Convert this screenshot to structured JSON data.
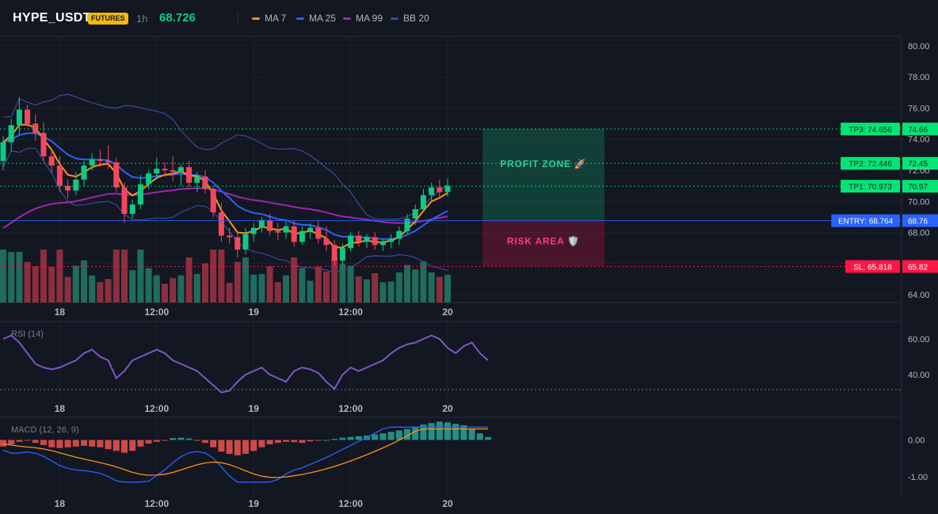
{
  "header": {
    "symbol": "HYPE_USDT",
    "badge": "FUTURES",
    "timeframe": "1h",
    "last_price": "68.726",
    "legend": [
      {
        "name": "MA 7",
        "color": "#f7931a"
      },
      {
        "name": "MA 25",
        "color": "#2962ff"
      },
      {
        "name": "MA 99",
        "color": "#9c27b0"
      },
      {
        "name": "BB 20",
        "color": "#3b4a9e"
      }
    ]
  },
  "colors": {
    "up": "#0ecb81",
    "down": "#f6465d",
    "vol_up": "#1f6b5c",
    "vol_down": "#8a2f3f",
    "entry": "#2962ff",
    "tp": "#00e676",
    "sl": "#ff1744",
    "rsi": "#7e57c2",
    "macd_line": "#2962ff",
    "signal_line": "#f7931a"
  },
  "x_axis": {
    "ticks": [
      {
        "label": "18",
        "index": 7
      },
      {
        "label": "12:00",
        "index": 19
      },
      {
        "label": "19",
        "index": 31
      },
      {
        "label": "12:00",
        "index": 43
      },
      {
        "label": "20",
        "index": 55
      }
    ]
  },
  "price_axis": {
    "ticks": [
      "80.00",
      "78.00",
      "76.00",
      "74.00",
      "72.00",
      "70.00",
      "68.00",
      "64.00"
    ]
  },
  "rsi_axis": {
    "ticks": [
      "60.00",
      "40.00"
    ]
  },
  "macd_axis": {
    "ticks": [
      "0.00",
      "-1.00"
    ]
  },
  "levels": [
    {
      "label": "TP3: 74.656",
      "price": 74.656,
      "axis": "74.66",
      "kind": "tp"
    },
    {
      "label": "TP2: 72.446",
      "price": 72.446,
      "axis": "72.45",
      "kind": "tp"
    },
    {
      "label": "TP1: 70.973",
      "price": 70.973,
      "axis": "70.97",
      "kind": "tp"
    },
    {
      "label": "ENTRY: 68.764",
      "price": 68.764,
      "axis": "68.76",
      "kind": "entry"
    },
    {
      "label": "SL: 65.818",
      "price": 65.818,
      "axis": "65.82",
      "kind": "sl"
    }
  ],
  "zones": {
    "profit_label": "PROFIT ZONE 🚀",
    "risk_label": "RISK AREA 🛡️"
  },
  "chart_data": [
    {
      "type": "candlestick",
      "title": "HYPE_USDT 1h",
      "ylim": [
        63.5,
        80.5
      ],
      "candles": [
        {
          "o": 72.6,
          "h": 74.2,
          "l": 72.0,
          "c": 73.8
        },
        {
          "o": 73.8,
          "h": 75.3,
          "l": 73.2,
          "c": 74.9
        },
        {
          "o": 74.9,
          "h": 76.7,
          "l": 74.3,
          "c": 75.9
        },
        {
          "o": 75.9,
          "h": 76.2,
          "l": 74.8,
          "c": 75.0
        },
        {
          "o": 75.0,
          "h": 75.6,
          "l": 73.9,
          "c": 74.4
        },
        {
          "o": 74.4,
          "h": 75.1,
          "l": 72.6,
          "c": 72.9
        },
        {
          "o": 72.9,
          "h": 73.4,
          "l": 71.8,
          "c": 72.3
        },
        {
          "o": 72.3,
          "h": 72.9,
          "l": 70.6,
          "c": 71.0
        },
        {
          "o": 71.0,
          "h": 71.4,
          "l": 70.2,
          "c": 70.7
        },
        {
          "o": 70.7,
          "h": 71.9,
          "l": 70.4,
          "c": 71.4
        },
        {
          "o": 71.4,
          "h": 72.6,
          "l": 71.0,
          "c": 72.3
        },
        {
          "o": 72.3,
          "h": 73.1,
          "l": 72.0,
          "c": 72.7
        },
        {
          "o": 72.7,
          "h": 73.3,
          "l": 72.2,
          "c": 72.6
        },
        {
          "o": 72.6,
          "h": 73.6,
          "l": 72.1,
          "c": 72.5
        },
        {
          "o": 72.5,
          "h": 72.8,
          "l": 70.6,
          "c": 70.9
        },
        {
          "o": 70.9,
          "h": 71.2,
          "l": 68.6,
          "c": 69.2
        },
        {
          "o": 69.2,
          "h": 70.1,
          "l": 68.9,
          "c": 69.8
        },
        {
          "o": 69.8,
          "h": 71.7,
          "l": 69.5,
          "c": 71.1
        },
        {
          "o": 71.1,
          "h": 72.0,
          "l": 70.8,
          "c": 71.8
        },
        {
          "o": 71.8,
          "h": 72.8,
          "l": 71.4,
          "c": 72.1
        },
        {
          "o": 72.1,
          "h": 72.5,
          "l": 71.6,
          "c": 72.0
        },
        {
          "o": 72.0,
          "h": 72.9,
          "l": 71.3,
          "c": 71.9
        },
        {
          "o": 71.9,
          "h": 72.4,
          "l": 71.0,
          "c": 72.2
        },
        {
          "o": 72.2,
          "h": 72.6,
          "l": 70.9,
          "c": 71.2
        },
        {
          "o": 71.2,
          "h": 71.9,
          "l": 70.6,
          "c": 71.6
        },
        {
          "o": 71.6,
          "h": 72.0,
          "l": 70.5,
          "c": 70.8
        },
        {
          "o": 70.8,
          "h": 71.0,
          "l": 69.0,
          "c": 69.3
        },
        {
          "o": 69.3,
          "h": 69.9,
          "l": 67.4,
          "c": 67.8
        },
        {
          "o": 67.8,
          "h": 68.3,
          "l": 67.3,
          "c": 67.7
        },
        {
          "o": 67.7,
          "h": 68.1,
          "l": 66.4,
          "c": 66.9
        },
        {
          "o": 66.9,
          "h": 68.3,
          "l": 66.6,
          "c": 67.9
        },
        {
          "o": 67.9,
          "h": 68.6,
          "l": 67.4,
          "c": 68.3
        },
        {
          "o": 68.3,
          "h": 69.0,
          "l": 68.0,
          "c": 68.8
        },
        {
          "o": 68.8,
          "h": 69.2,
          "l": 67.8,
          "c": 68.1
        },
        {
          "o": 68.1,
          "h": 68.6,
          "l": 67.5,
          "c": 68.0
        },
        {
          "o": 68.0,
          "h": 68.7,
          "l": 67.6,
          "c": 68.4
        },
        {
          "o": 68.4,
          "h": 68.8,
          "l": 67.1,
          "c": 67.4
        },
        {
          "o": 67.4,
          "h": 68.4,
          "l": 67.2,
          "c": 68.1
        },
        {
          "o": 68.1,
          "h": 68.6,
          "l": 67.6,
          "c": 68.3
        },
        {
          "o": 68.3,
          "h": 68.7,
          "l": 67.3,
          "c": 67.6
        },
        {
          "o": 67.6,
          "h": 68.4,
          "l": 66.8,
          "c": 67.2
        },
        {
          "o": 67.2,
          "h": 67.5,
          "l": 65.9,
          "c": 66.2
        },
        {
          "o": 66.2,
          "h": 67.3,
          "l": 65.9,
          "c": 67.0
        },
        {
          "o": 67.0,
          "h": 68.0,
          "l": 66.8,
          "c": 67.8
        },
        {
          "o": 67.8,
          "h": 68.1,
          "l": 67.1,
          "c": 67.4
        },
        {
          "o": 67.4,
          "h": 67.9,
          "l": 67.0,
          "c": 67.7
        },
        {
          "o": 67.7,
          "h": 68.0,
          "l": 66.9,
          "c": 67.2
        },
        {
          "o": 67.2,
          "h": 67.6,
          "l": 66.8,
          "c": 67.4
        },
        {
          "o": 67.4,
          "h": 67.9,
          "l": 67.0,
          "c": 67.6
        },
        {
          "o": 67.6,
          "h": 68.4,
          "l": 67.2,
          "c": 68.1
        },
        {
          "o": 68.1,
          "h": 69.2,
          "l": 67.9,
          "c": 68.9
        },
        {
          "o": 68.9,
          "h": 69.8,
          "l": 68.5,
          "c": 69.5
        },
        {
          "o": 69.5,
          "h": 70.8,
          "l": 69.3,
          "c": 70.4
        },
        {
          "o": 70.4,
          "h": 71.2,
          "l": 70.0,
          "c": 70.9
        },
        {
          "o": 70.9,
          "h": 71.4,
          "l": 70.2,
          "c": 70.6
        },
        {
          "o": 70.6,
          "h": 71.5,
          "l": 70.3,
          "c": 71.0
        }
      ]
    },
    {
      "type": "line",
      "title": "RSI (14)",
      "ylim": [
        28,
        68
      ],
      "values": [
        60,
        62,
        58,
        52,
        46,
        44,
        43,
        44,
        46,
        48,
        52,
        54,
        50,
        48,
        38,
        42,
        48,
        50,
        52,
        54,
        52,
        48,
        46,
        44,
        42,
        38,
        34,
        30,
        31,
        36,
        40,
        42,
        44,
        40,
        38,
        36,
        42,
        44,
        43,
        41,
        36,
        32,
        40,
        44,
        42,
        44,
        46,
        48,
        52,
        55,
        57,
        58,
        60,
        62,
        60,
        55,
        52,
        56,
        58,
        52,
        48
      ]
    },
    {
      "type": "bar",
      "title": "MACD (12, 26, 9)",
      "ylim": [
        -1.35,
        0.55
      ],
      "values": [
        -0.18,
        -0.12,
        -0.05,
        -0.02,
        -0.08,
        -0.14,
        -0.2,
        -0.22,
        -0.2,
        -0.18,
        -0.16,
        -0.18,
        -0.2,
        -0.25,
        -0.3,
        -0.35,
        -0.3,
        -0.18,
        -0.1,
        -0.05,
        -0.02,
        0.05,
        0.06,
        0.04,
        -0.02,
        -0.08,
        -0.2,
        -0.32,
        -0.38,
        -0.42,
        -0.38,
        -0.3,
        -0.2,
        -0.12,
        -0.08,
        -0.05,
        -0.06,
        -0.08,
        -0.04,
        -0.02,
        0.0,
        0.03,
        0.06,
        0.08,
        0.1,
        0.12,
        0.15,
        0.18,
        0.22,
        0.26,
        0.3,
        0.36,
        0.42,
        0.46,
        0.5,
        0.48,
        0.44,
        0.4,
        0.3,
        0.18,
        0.08
      ]
    }
  ]
}
